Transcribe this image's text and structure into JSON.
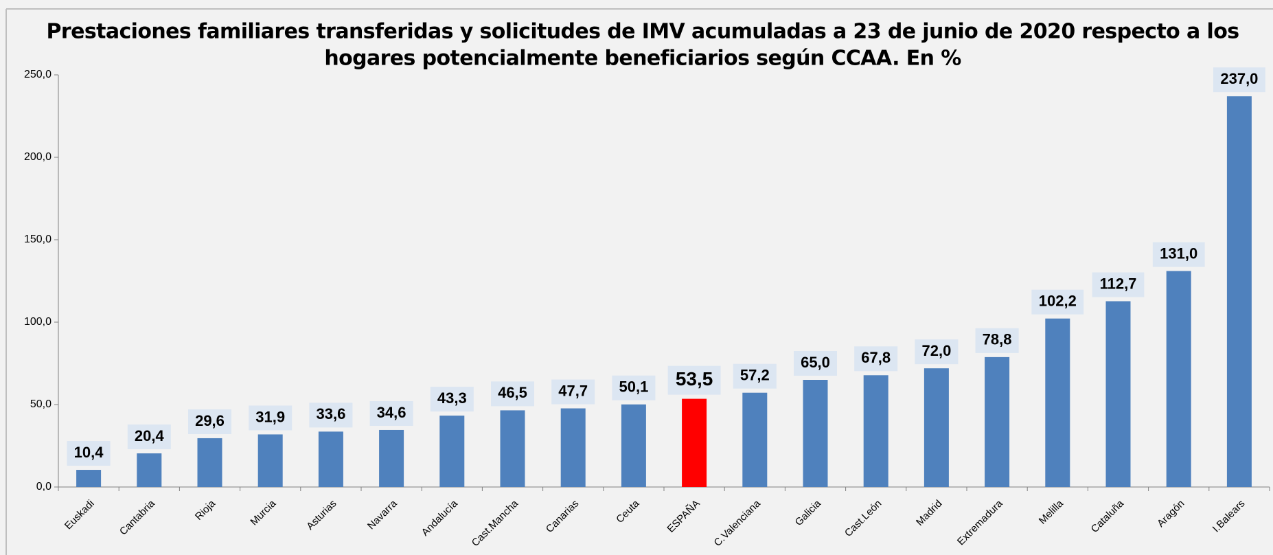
{
  "chart_data": {
    "type": "bar",
    "title": [
      "Prestaciones familiares transferidas y solicitudes de IMV acumuladas a 23 de junio de 2020 respecto a los",
      "hogares potencialmente beneficiarios según CCAA. En %"
    ],
    "categories": [
      "Euskadi",
      "Cantabria",
      "Rioja",
      "Murcia",
      "Asturias",
      "Navarra",
      "Andalucía",
      "Cast.Mancha",
      "Canarias",
      "Ceuta",
      "ESPAÑA",
      "C.Valenciana",
      "Galicia",
      "Cast.León",
      "Madrid",
      "Extremadura",
      "Melilla",
      "Cataluña",
      "Aragón",
      "I.Balears"
    ],
    "values": [
      10.4,
      20.4,
      29.6,
      31.9,
      33.6,
      34.6,
      43.3,
      46.5,
      47.7,
      50.1,
      53.5,
      57.2,
      65.0,
      67.8,
      72.0,
      78.8,
      102.2,
      112.7,
      131.0,
      237.0
    ],
    "value_labels": [
      "10,4",
      "20,4",
      "29,6",
      "31,9",
      "33,6",
      "34,6",
      "43,3",
      "46,5",
      "47,7",
      "50,1",
      "53,5",
      "57,2",
      "65,0",
      "67,8",
      "72,0",
      "78,8",
      "102,2",
      "112,7",
      "131,0",
      "237,0"
    ],
    "colors": [
      "#4f81bd",
      "#4f81bd",
      "#4f81bd",
      "#4f81bd",
      "#4f81bd",
      "#4f81bd",
      "#4f81bd",
      "#4f81bd",
      "#4f81bd",
      "#4f81bd",
      "#ff0000",
      "#4f81bd",
      "#4f81bd",
      "#4f81bd",
      "#4f81bd",
      "#4f81bd",
      "#4f81bd",
      "#4f81bd",
      "#4f81bd",
      "#4f81bd"
    ],
    "ylim": [
      0,
      250
    ],
    "yticks": [
      {
        "value": 0,
        "label": "0,0"
      },
      {
        "value": 50,
        "label": "50,0"
      },
      {
        "value": 100,
        "label": "100,0"
      },
      {
        "value": 150,
        "label": "150,0"
      },
      {
        "value": 200,
        "label": "200,0"
      },
      {
        "value": 250,
        "label": "250,0"
      }
    ],
    "grid": false
  }
}
